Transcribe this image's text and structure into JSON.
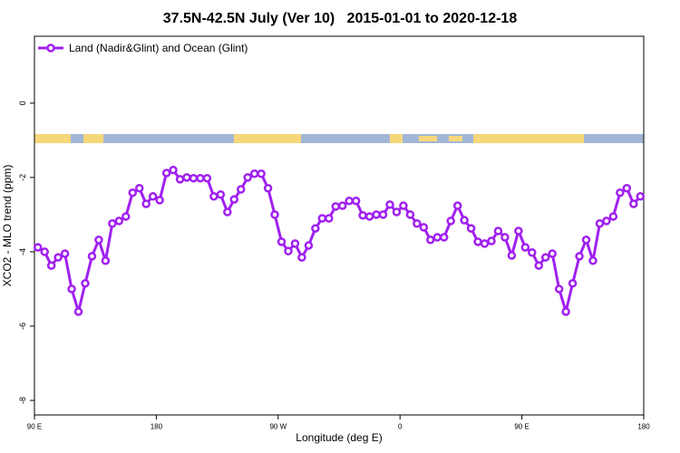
{
  "chart_data": {
    "type": "line",
    "title": "37.5N-42.5N July (Ver 10)   2015-01-01 to 2020-12-18",
    "x_label": "Longitude (deg E)",
    "y_label": "XCO2 - MLO trend (ppm)",
    "legend_position": "top-left",
    "xlim": [
      90,
      540
    ],
    "xticks": [
      {
        "value": 90,
        "label": "90 E"
      },
      {
        "value": 180,
        "label": "180"
      },
      {
        "value": 270,
        "label": "90 W"
      },
      {
        "value": 360,
        "label": "0"
      },
      {
        "value": 450,
        "label": "90 E"
      },
      {
        "value": 540,
        "label": "180"
      }
    ],
    "ylim": [
      -8.39,
      1.8
    ],
    "yticks": [
      -8,
      -6,
      -4,
      -2,
      0
    ],
    "x": [
      92.5,
      97.5,
      102.5,
      107.5,
      112.5,
      117.5,
      122.5,
      127.5,
      132.5,
      137.5,
      142.5,
      147.5,
      152.5,
      157.5,
      162.5,
      167.5,
      172.5,
      177.5,
      182.5,
      187.5,
      192.5,
      197.5,
      202.5,
      207.5,
      212.5,
      217.5,
      222.5,
      227.5,
      232.5,
      237.5,
      242.5,
      247.5,
      252.5,
      257.5,
      262.5,
      267.5,
      272.5,
      277.5,
      282.5,
      287.5,
      292.5,
      297.5,
      302.5,
      307.5,
      312.5,
      317.5,
      322.5,
      327.5,
      332.5,
      337.5,
      342.5,
      347.5,
      352.5,
      357.5,
      362.5,
      367.5,
      372.5,
      377.5,
      382.5,
      387.5,
      392.5,
      397.5,
      402.5,
      407.5,
      412.5,
      417.5,
      422.5,
      427.5,
      432.5,
      437.5,
      442.5,
      447.5,
      452.5,
      457.5,
      462.5,
      467.5,
      472.5,
      477.5,
      482.5,
      487.5,
      492.5,
      497.5,
      502.5,
      507.5,
      512.5,
      517.5,
      522.5,
      527.5,
      532.5,
      537.5
    ],
    "series": [
      {
        "name": "Land (Nadir&Glint) and Ocean (Glint)",
        "color": "#a020f0",
        "values": [
          -3.88,
          -4.0,
          -4.37,
          -4.15,
          -4.05,
          -5.0,
          -5.61,
          -4.85,
          -4.12,
          -3.68,
          -4.24,
          -3.24,
          -3.17,
          -3.05,
          -2.41,
          -2.29,
          -2.71,
          -2.51,
          -2.61,
          -1.88,
          -1.8,
          -2.05,
          -2.0,
          -2.02,
          -2.02,
          -2.02,
          -2.51,
          -2.46,
          -2.93,
          -2.59,
          -2.32,
          -2.0,
          -1.9,
          -1.9,
          -2.29,
          -3.0,
          -3.73,
          -3.98,
          -3.78,
          -4.15,
          -3.83,
          -3.37,
          -3.1,
          -3.1,
          -2.78,
          -2.76,
          -2.63,
          -2.63,
          -3.02,
          -3.05,
          -3.0,
          -3.0,
          -2.73,
          -2.93,
          -2.76,
          -3.0,
          -3.24,
          -3.34,
          -3.68,
          -3.61,
          -3.61,
          -3.17,
          -2.76,
          -3.15,
          -3.37,
          -3.73,
          -3.78,
          -3.71,
          -3.44,
          -3.61,
          -4.1,
          -3.44,
          -3.88,
          -4.02,
          -4.37,
          -4.15,
          -4.05,
          -5.0,
          -5.61,
          -4.85,
          -4.12,
          -3.68,
          -4.24,
          -3.24,
          -3.17,
          -3.05,
          -2.41,
          -2.29,
          -2.71,
          -2.51
        ]
      }
    ]
  }
}
